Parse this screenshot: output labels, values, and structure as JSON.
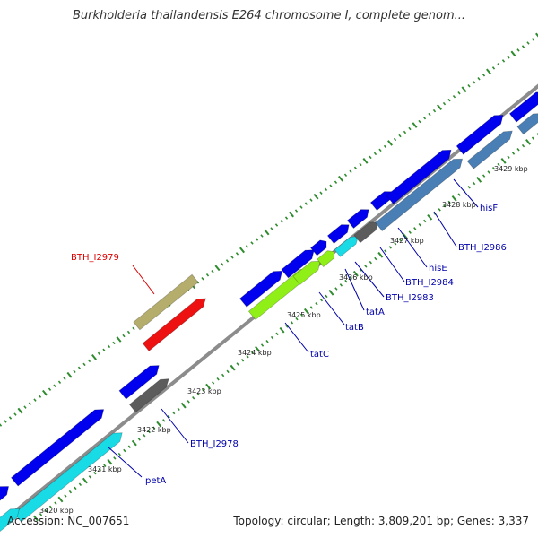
{
  "title": "Burkholderia thailandensis E264 chromosome I, complete genom...",
  "footer": {
    "accession": "Accession: NC_007651",
    "topology": "Topology: circular; Length: 3,809,201 bp; Genes: 3,337"
  },
  "colors": {
    "backbone": "#8c8c8c",
    "tick_major": "#2e8b2e",
    "tick_minor": "#2e8b2e",
    "blue": "#0000ee",
    "steel": "#4a7fb5",
    "cyan": "#19dbe6",
    "lime": "#8fef16",
    "gray": "#5c5c5c",
    "khaki": "#b5ad6c",
    "red": "#ee1111",
    "label_blue": "#0000aa",
    "label_red": "#dd0000"
  },
  "kbp_labels": [
    "3420 kbp",
    "3421 kbp",
    "3422 kbp",
    "3423 kbp",
    "3424 kbp",
    "3425 kbp",
    "3426 kbp",
    "3427 kbp",
    "3428 kbp",
    "3429 kbp"
  ],
  "gene_labels": {
    "petA": "petA",
    "bth_i2978": "BTH_I2978",
    "bth_i2979": "BTH_I2979",
    "tatC": "tatC",
    "tatB": "tatB",
    "tatA": "tatA",
    "bth_i2983": "BTH_I2983",
    "bth_i2984": "BTH_I2984",
    "hisE": "hisE",
    "bth_i2986": "BTH_I2986",
    "hisF": "hisF"
  }
}
